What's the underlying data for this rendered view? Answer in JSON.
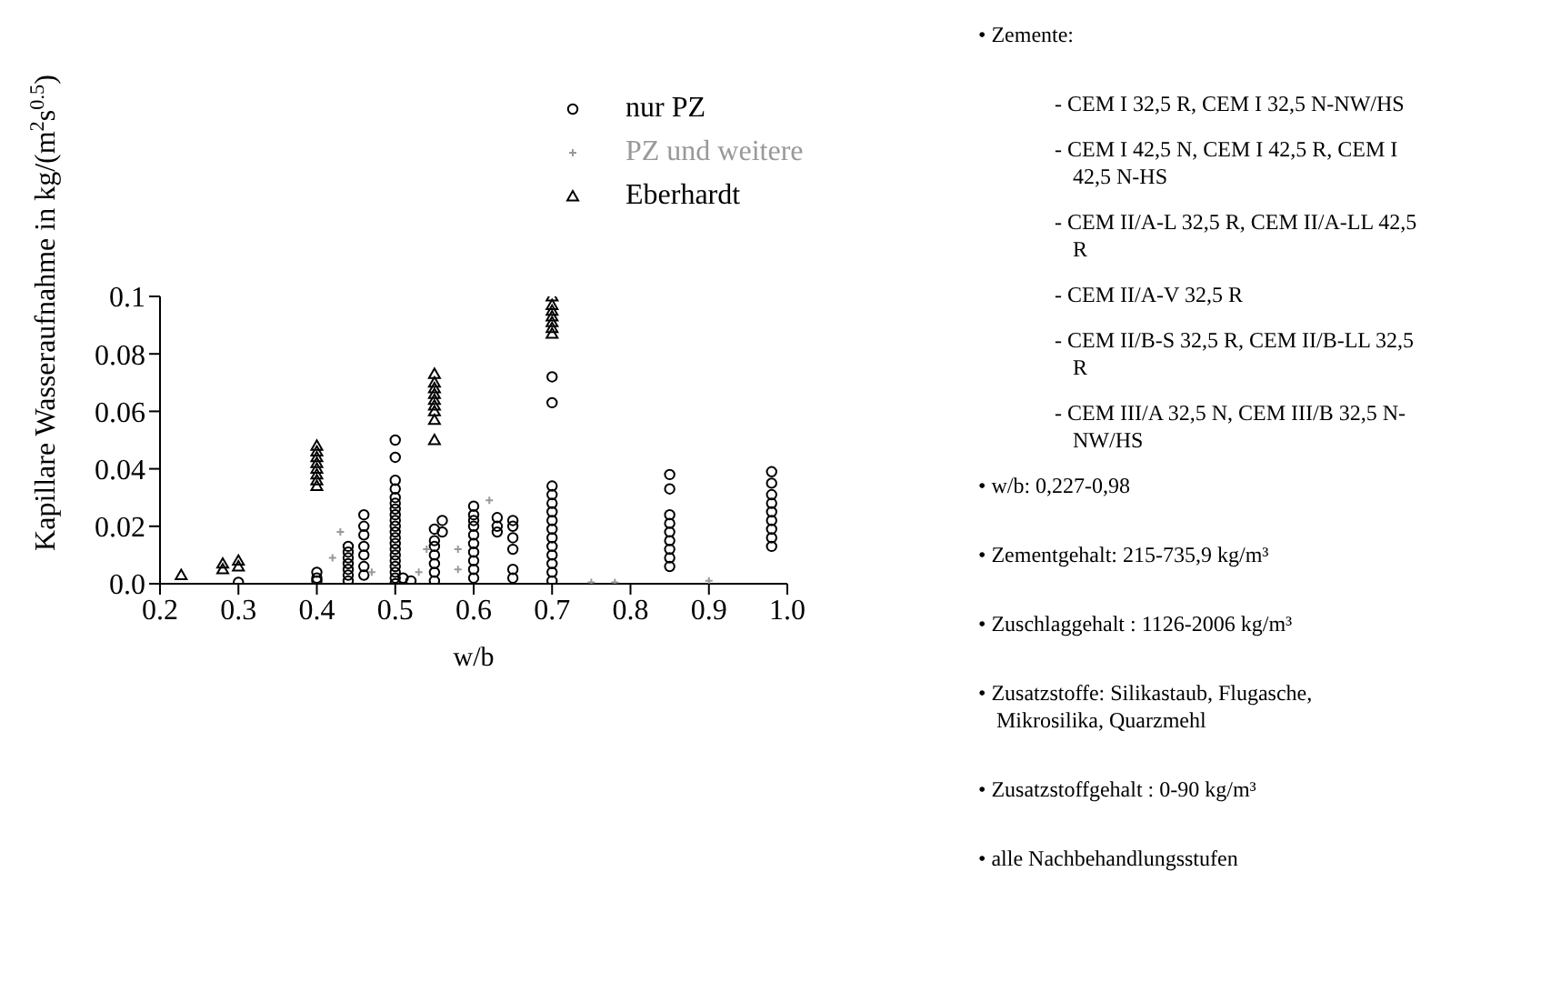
{
  "chart_data": [
    {
      "type": "scatter",
      "ylabel": "Kapillare Wasseraufnahme in kg/(m$^{2}$s$^{0.5}$)",
      "xlabel": "w/b",
      "xlim": [
        0.2,
        1.0
      ],
      "xticks": [
        0.2,
        0.3,
        0.4,
        0.5,
        0.6,
        0.7,
        0.8,
        0.9,
        {
          "value": 1,
          "label": "1.0"
        }
      ],
      "ylim": [
        0,
        0.1
      ],
      "yticks": [
        {
          "value": 0,
          "label": "0.0"
        },
        0.02,
        0.04,
        0.06,
        0.08,
        0.1
      ],
      "grid": false,
      "legend": "top right",
      "series": [
        {
          "name": "nur PZ",
          "color": "#000000",
          "marker": "circle",
          "x": [
            0.3,
            0.4,
            0.4,
            0.4,
            0.44,
            0.44,
            0.44,
            0.44,
            0.44,
            0.44,
            0.44,
            0.46,
            0.46,
            0.46,
            0.46,
            0.46,
            0.46,
            0.46,
            0.5,
            0.5,
            0.5,
            0.5,
            0.5,
            0.5,
            0.5,
            0.5,
            0.5,
            0.5,
            0.5,
            0.5,
            0.5,
            0.5,
            0.5,
            0.5,
            0.5,
            0.5,
            0.5,
            0.5,
            0.51,
            0.52,
            0.55,
            0.55,
            0.55,
            0.55,
            0.55,
            0.55,
            0.55,
            0.56,
            0.56,
            0.6,
            0.6,
            0.6,
            0.6,
            0.6,
            0.6,
            0.6,
            0.6,
            0.6,
            0.6,
            0.63,
            0.63,
            0.63,
            0.65,
            0.65,
            0.65,
            0.65,
            0.65,
            0.65,
            0.7,
            0.7,
            0.7,
            0.7,
            0.7,
            0.7,
            0.7,
            0.7,
            0.7,
            0.7,
            0.7,
            0.7,
            0.7,
            0.7,
            0.85,
            0.85,
            0.85,
            0.85,
            0.85,
            0.85,
            0.85,
            0.85,
            0.85,
            0.98,
            0.98,
            0.98,
            0.98,
            0.98,
            0.98,
            0.98,
            0.98,
            0.98
          ],
          "values": [
            0.0005,
            0.001,
            0.002,
            0.004,
            0.001,
            0.003,
            0.005,
            0.007,
            0.009,
            0.011,
            0.013,
            0.003,
            0.006,
            0.01,
            0.013,
            0.017,
            0.02,
            0.024,
            0,
            0.002,
            0.004,
            0.006,
            0.008,
            0.01,
            0.012,
            0.014,
            0.016,
            0.018,
            0.02,
            0.022,
            0.024,
            0.026,
            0.028,
            0.03,
            0.033,
            0.036,
            0.044,
            0.05,
            0.002,
            0.001,
            0.001,
            0.004,
            0.007,
            0.01,
            0.013,
            0.015,
            0.019,
            0.018,
            0.022,
            0.002,
            0.005,
            0.008,
            0.011,
            0.014,
            0.017,
            0.02,
            0.022,
            0.024,
            0.027,
            0.018,
            0.02,
            0.023,
            0.002,
            0.005,
            0.012,
            0.016,
            0.02,
            0.022,
            0.001,
            0.004,
            0.007,
            0.01,
            0.013,
            0.016,
            0.019,
            0.022,
            0.025,
            0.028,
            0.031,
            0.034,
            0.063,
            0.072,
            0.006,
            0.009,
            0.012,
            0.015,
            0.018,
            0.021,
            0.024,
            0.033,
            0.038,
            0.013,
            0.016,
            0.019,
            0.022,
            0.025,
            0.028,
            0.031,
            0.035,
            0.039
          ]
        },
        {
          "name": "PZ und weitere",
          "color": "#999999",
          "marker": "cross",
          "x": [
            0.42,
            0.43,
            0.47,
            0.53,
            0.54,
            0.58,
            0.58,
            0.62,
            0.75,
            0.78,
            0.9
          ],
          "values": [
            0.009,
            0.018,
            0.004,
            0.004,
            0.012,
            0.005,
            0.012,
            0.029,
            0.0005,
            0.0005,
            0.001
          ]
        },
        {
          "name": "Eberhardt",
          "color": "#000000",
          "marker": "triangle",
          "x": [
            0.227,
            0.28,
            0.28,
            0.3,
            0.3,
            0.4,
            0.4,
            0.4,
            0.4,
            0.4,
            0.4,
            0.4,
            0.4,
            0.55,
            0.55,
            0.55,
            0.55,
            0.55,
            0.55,
            0.55,
            0.55,
            0.55,
            0.7,
            0.7,
            0.7,
            0.7,
            0.7,
            0.7,
            0.7
          ],
          "values": [
            0.003,
            0.005,
            0.007,
            0.006,
            0.008,
            0.034,
            0.036,
            0.038,
            0.04,
            0.042,
            0.044,
            0.046,
            0.048,
            0.05,
            0.057,
            0.06,
            0.062,
            0.064,
            0.066,
            0.068,
            0.07,
            0.073,
            0.087,
            0.089,
            0.091,
            0.093,
            0.095,
            0.097,
            0.1
          ]
        }
      ]
    },
    {
      "type": "other",
      "annotations": [
        "• Zemente:",
        "- CEM I 32,5 R, CEM I 32,5 N-NW/HS",
        "- CEM I 42,5 N, CEM I 42,5 R, CEM I 42,5 N-HS",
        "- CEM II/A-L 32,5 R, CEM II/A-LL 42,5 R",
        "- CEM II/A-V 32,5 R",
        "- CEM II/B-S 32,5 R, CEM II/B-LL 32,5 R",
        "- CEM III/A 32,5 N, CEM III/B 32,5 N-NW/HS",
        "• w/b: 0,227-0,98",
        "• Zementgehalt: 215-735,9 kg/m³",
        "• Zuschlaggehalt : 1126-2006 kg/m³",
        "• Zusatzstoffe: Silikastaub, Flugasche, Mikrosilika, Quarzmehl",
        "• Zusatzstoffgehalt : 0-90 kg/m³",
        "• alle Nachbehandlungsstufen"
      ]
    }
  ]
}
